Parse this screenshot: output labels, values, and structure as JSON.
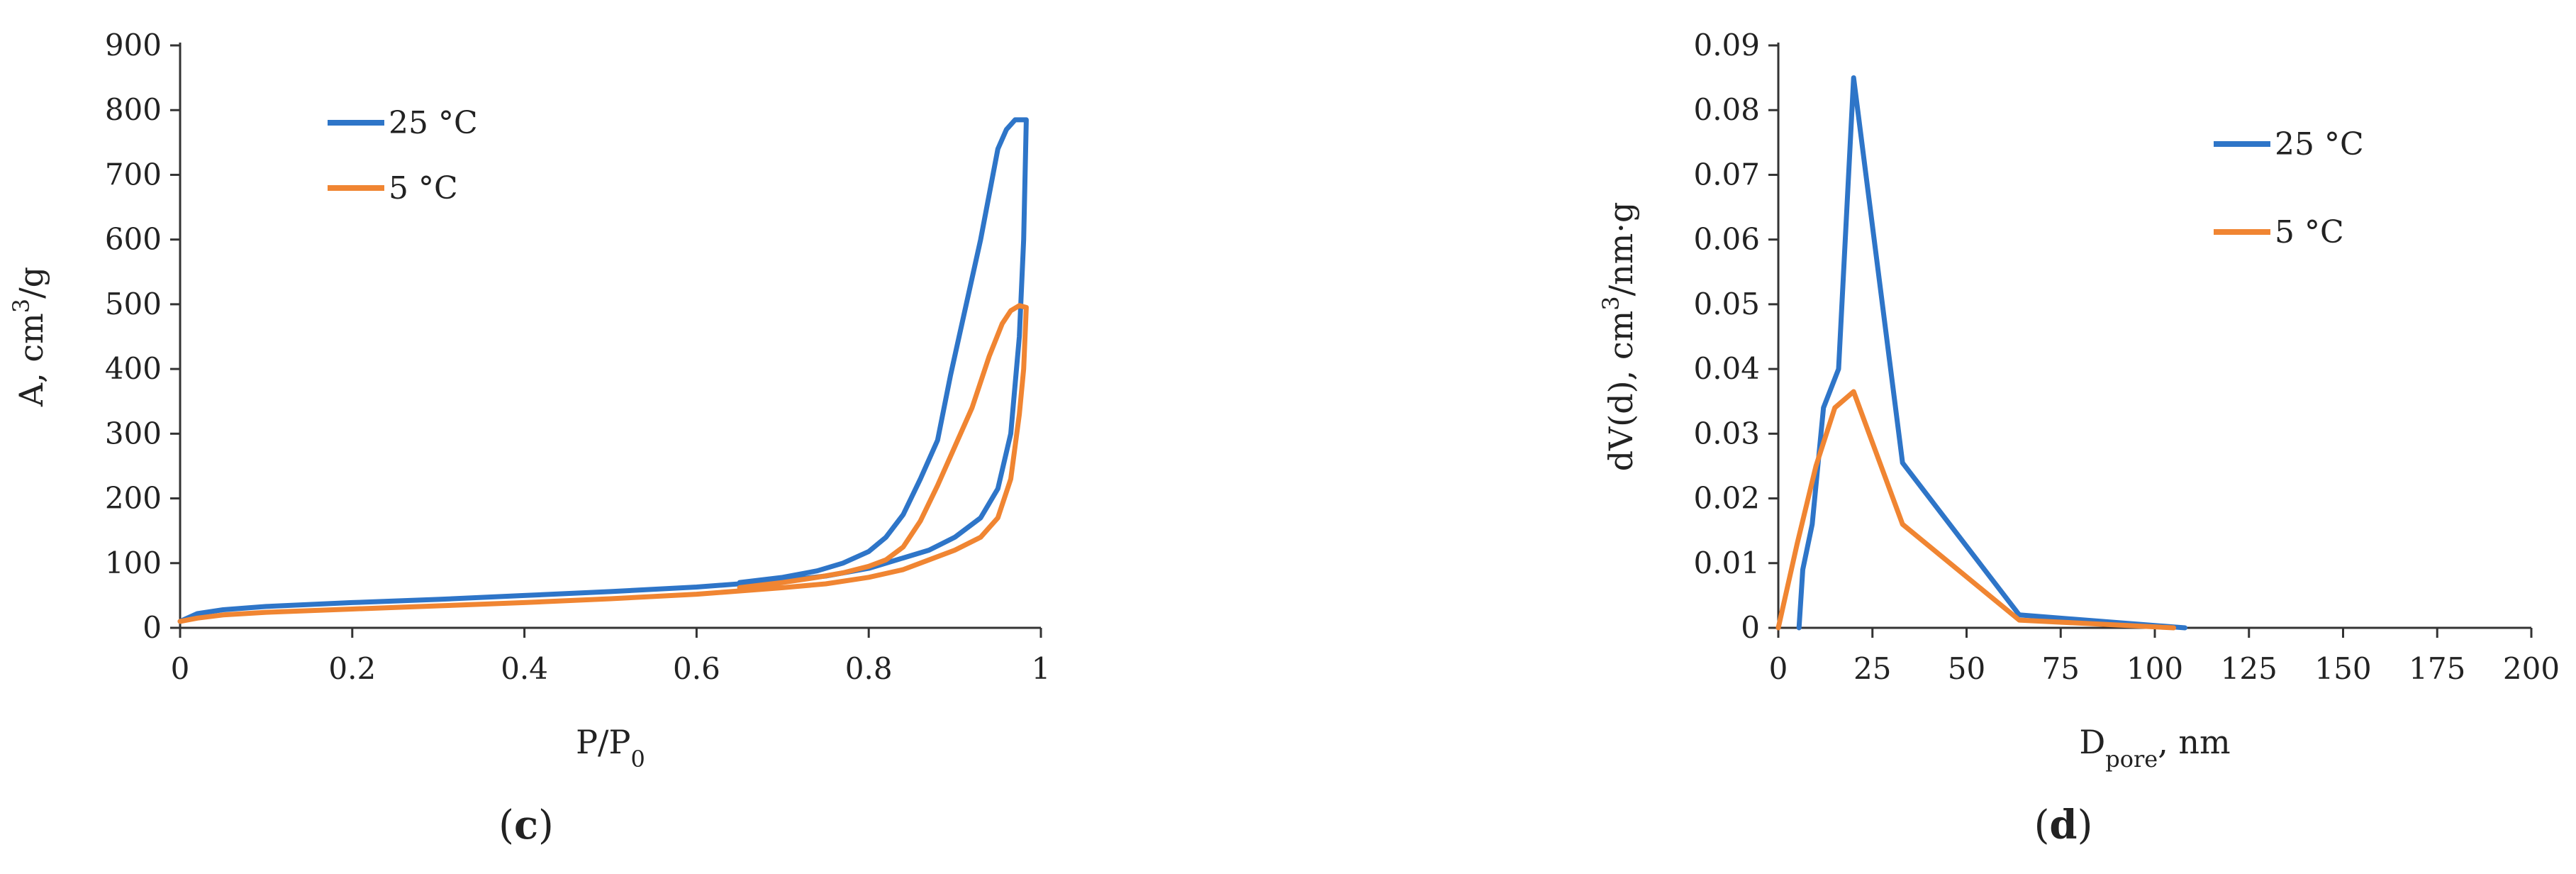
{
  "colors": {
    "series_blue": "#2E75C8",
    "series_orange": "#F08532",
    "axis": "#333333",
    "text": "#222222",
    "background": "#FFFFFF"
  },
  "chart_data": [
    {
      "panel": "c",
      "panel_label": {
        "open": "(",
        "letter": "c",
        "close": ")"
      },
      "type": "line",
      "title": "",
      "xlabel": {
        "main": "P/P",
        "sub": "0"
      },
      "ylabel": {
        "main": "A, cm",
        "sup": "3",
        "tail": "/g"
      },
      "xlim": [
        0,
        1
      ],
      "ylim": [
        0,
        900
      ],
      "xticks": [
        0,
        0.2,
        0.4,
        0.6,
        0.8,
        1
      ],
      "xtick_labels": [
        "0",
        "0.2",
        "0.4",
        "0.6",
        "0.8",
        "1"
      ],
      "yticks": [
        0,
        100,
        200,
        300,
        400,
        500,
        600,
        700,
        800,
        900
      ],
      "ytick_labels": [
        "0",
        "100",
        "200",
        "300",
        "400",
        "500",
        "600",
        "700",
        "800",
        "900"
      ],
      "grid": false,
      "legend_position": "top-left",
      "series": [
        {
          "name": "25 °C",
          "color": "#2E75C8",
          "points": [
            [
              0,
              10
            ],
            [
              0.02,
              22
            ],
            [
              0.05,
              28
            ],
            [
              0.1,
              33
            ],
            [
              0.2,
              39
            ],
            [
              0.3,
              44
            ],
            [
              0.4,
              50
            ],
            [
              0.5,
              56
            ],
            [
              0.6,
              63
            ],
            [
              0.7,
              73
            ],
            [
              0.75,
              80
            ],
            [
              0.8,
              92
            ],
            [
              0.84,
              108
            ],
            [
              0.87,
              120
            ],
            [
              0.9,
              140
            ],
            [
              0.93,
              170
            ],
            [
              0.95,
              215
            ],
            [
              0.965,
              300
            ],
            [
              0.975,
              450
            ],
            [
              0.98,
              600
            ],
            [
              0.983,
              785
            ],
            [
              0.97,
              785
            ],
            [
              0.96,
              770
            ],
            [
              0.95,
              740
            ],
            [
              0.93,
              600
            ],
            [
              0.91,
              480
            ],
            [
              0.895,
              390
            ],
            [
              0.88,
              290
            ],
            [
              0.86,
              230
            ],
            [
              0.84,
              175
            ],
            [
              0.82,
              140
            ],
            [
              0.8,
              118
            ],
            [
              0.77,
              100
            ],
            [
              0.74,
              88
            ],
            [
              0.7,
              78
            ],
            [
              0.65,
              70
            ]
          ]
        },
        {
          "name": "5 °C",
          "color": "#F08532",
          "points": [
            [
              0,
              10
            ],
            [
              0.02,
              15
            ],
            [
              0.05,
              20
            ],
            [
              0.1,
              24
            ],
            [
              0.2,
              29
            ],
            [
              0.3,
              34
            ],
            [
              0.4,
              39
            ],
            [
              0.5,
              45
            ],
            [
              0.6,
              52
            ],
            [
              0.7,
              62
            ],
            [
              0.75,
              68
            ],
            [
              0.8,
              78
            ],
            [
              0.84,
              90
            ],
            [
              0.87,
              105
            ],
            [
              0.9,
              120
            ],
            [
              0.93,
              140
            ],
            [
              0.95,
              170
            ],
            [
              0.965,
              230
            ],
            [
              0.975,
              330
            ],
            [
              0.98,
              400
            ],
            [
              0.983,
              495
            ],
            [
              0.975,
              498
            ],
            [
              0.965,
              490
            ],
            [
              0.955,
              470
            ],
            [
              0.94,
              420
            ],
            [
              0.92,
              340
            ],
            [
              0.9,
              280
            ],
            [
              0.88,
              220
            ],
            [
              0.86,
              165
            ],
            [
              0.84,
              125
            ],
            [
              0.82,
              105
            ],
            [
              0.8,
              95
            ],
            [
              0.77,
              85
            ],
            [
              0.74,
              78
            ],
            [
              0.7,
              70
            ],
            [
              0.65,
              62
            ]
          ]
        }
      ]
    },
    {
      "panel": "d",
      "panel_label": {
        "open": "(",
        "letter": "d",
        "close": ")"
      },
      "type": "line",
      "title": "",
      "xlabel": {
        "main": "D",
        "sub": "pore",
        "tail": ", nm"
      },
      "ylabel": {
        "main": "dV(d), cm",
        "sup": "3",
        "tail": "/nm·g"
      },
      "xlim": [
        0,
        200
      ],
      "ylim": [
        0,
        0.09
      ],
      "xticks": [
        0,
        25,
        50,
        75,
        100,
        125,
        150,
        175,
        200
      ],
      "xtick_labels": [
        "0",
        "25",
        "50",
        "75",
        "100",
        "125",
        "150",
        "175",
        "200"
      ],
      "yticks": [
        0,
        0.01,
        0.02,
        0.03,
        0.04,
        0.05,
        0.06,
        0.07,
        0.08,
        0.09
      ],
      "ytick_labels": [
        "0",
        "0.01",
        "0.02",
        "0.03",
        "0.04",
        "0.05",
        "0.06",
        "0.07",
        "0.08",
        "0.09"
      ],
      "grid": false,
      "legend_position": "right",
      "series": [
        {
          "name": "25 °C",
          "color": "#2E75C8",
          "points": [
            [
              5.5,
              0
            ],
            [
              6.5,
              0.009
            ],
            [
              9,
              0.016
            ],
            [
              12,
              0.034
            ],
            [
              16,
              0.04
            ],
            [
              20,
              0.085
            ],
            [
              33,
              0.0255
            ],
            [
              64,
              0.002
            ],
            [
              108,
              0
            ]
          ]
        },
        {
          "name": "5 °C",
          "color": "#F08532",
          "points": [
            [
              0,
              0
            ],
            [
              5,
              0.013
            ],
            [
              10,
              0.025
            ],
            [
              15,
              0.034
            ],
            [
              20,
              0.0365
            ],
            [
              33,
              0.016
            ],
            [
              64,
              0.0012
            ],
            [
              105,
              0
            ]
          ]
        }
      ]
    }
  ]
}
